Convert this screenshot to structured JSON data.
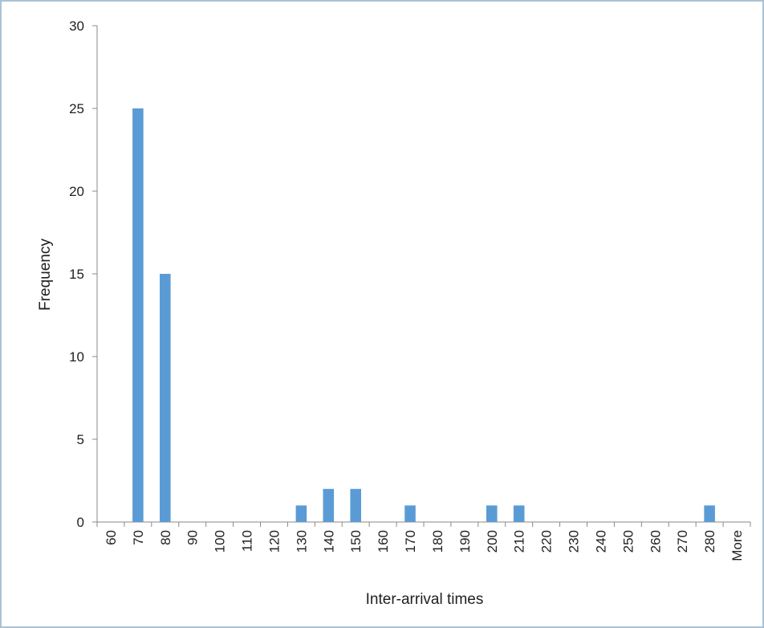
{
  "chart_data": {
    "type": "bar",
    "title": "",
    "xlabel": "Inter-arrival times",
    "ylabel": "Frequency",
    "ylim": [
      0,
      30
    ],
    "yticks": [
      0,
      5,
      10,
      15,
      20,
      25,
      30
    ],
    "grid": false,
    "legend": "none",
    "bar_color": "#5b9bd5",
    "categories": [
      "60",
      "70",
      "80",
      "90",
      "100",
      "110",
      "120",
      "130",
      "140",
      "150",
      "160",
      "170",
      "180",
      "190",
      "200",
      "210",
      "220",
      "230",
      "240",
      "250",
      "260",
      "270",
      "280",
      "More"
    ],
    "series": [
      {
        "values": [
          0,
          25,
          15,
          0,
          0,
          0,
          0,
          1,
          2,
          2,
          0,
          1,
          0,
          0,
          1,
          1,
          0,
          0,
          0,
          0,
          0,
          0,
          1,
          0
        ]
      }
    ]
  }
}
